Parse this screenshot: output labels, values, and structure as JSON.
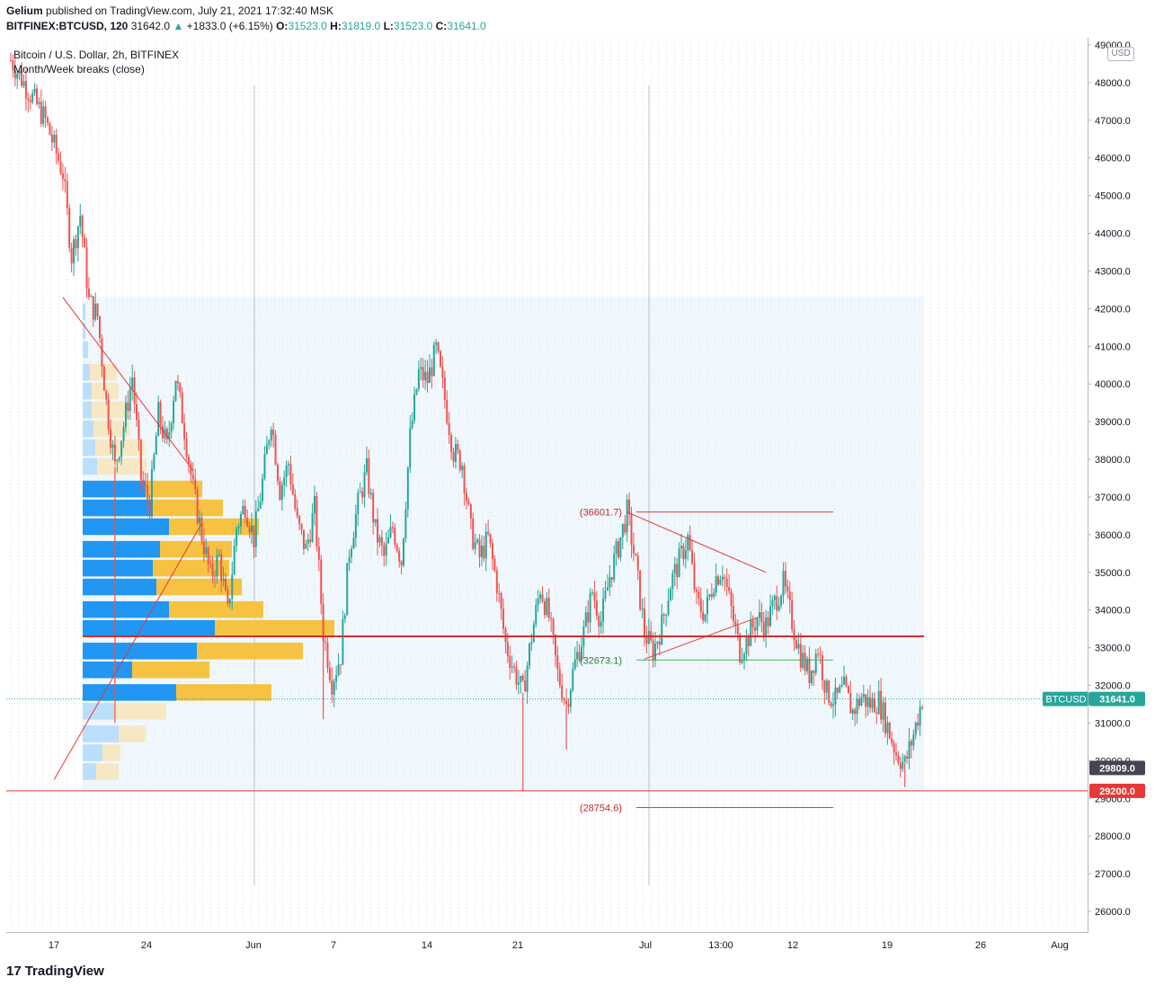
{
  "header": {
    "author": "Gelium",
    "published": " published on TradingView.com, July 21, 2021 17:32:40 MSK",
    "symbol": "BITFINEX:BTCUSD, 120",
    "last": "31642.0",
    "arrow": "▲",
    "change": "+1833.0 (+6.15%)",
    "o_label": "O:",
    "o_value": "31523.0",
    "h_label": "H:",
    "h_value": "31819.0",
    "l_label": "L:",
    "l_value": "31523.0",
    "c_label": "C:",
    "c_value": "31641.0"
  },
  "legend": {
    "line1": "Bitcoin / U.S. Dollar, 2h, BITFINEX",
    "line2": "Month/Week breaks (close)"
  },
  "currency_badge": "USD",
  "footer": {
    "logo_text": "TradingView",
    "logo_mark": "17"
  },
  "colors": {
    "up": "#26a69a",
    "down": "#ef5350",
    "red_line": "#e53935",
    "vp_blue": "#2196f3",
    "vp_yellow": "#f5c242",
    "vp_lightblue": "#bbdefb",
    "vp_lightyellow": "#f7e8c4",
    "range_bg": "#e3f2fd",
    "green_line": "#4caf50"
  },
  "chart_data": {
    "type": "candlestick",
    "symbol": "BTCUSD",
    "interval": "2h",
    "exchange": "BITFINEX",
    "x_ticks": [
      "17",
      "24",
      "Jun",
      "7",
      "14",
      "21",
      "Jul",
      "13:00",
      "12",
      "19",
      "26",
      "Aug"
    ],
    "y_ticks": [
      26000,
      27000,
      28000,
      29000,
      30000,
      31000,
      32000,
      33000,
      34000,
      35000,
      36000,
      37000,
      38000,
      39000,
      40000,
      41000,
      42000,
      43000,
      44000,
      45000,
      46000,
      47000,
      48000,
      49000
    ],
    "y_tick_labels": [
      "26000.0",
      "27000.0",
      "28000.0",
      "29000.0",
      "30000.0",
      "31000.0",
      "32000.0",
      "33000.0",
      "34000.0",
      "35000.0",
      "36000.0",
      "37000.0",
      "38000.0",
      "39000.0",
      "40000.0",
      "41000.0",
      "42000.0",
      "43000.0",
      "44000.0",
      "45000.0",
      "46000.0",
      "47000.0",
      "48000.0",
      "49000.0"
    ],
    "ylim": [
      25500,
      49200
    ],
    "price_path": [
      [
        0,
        48600
      ],
      [
        2,
        47800
      ],
      [
        4,
        47000
      ],
      [
        6,
        45600
      ],
      [
        7,
        43400
      ],
      [
        8,
        44500
      ],
      [
        9,
        42200
      ],
      [
        10,
        41800
      ],
      [
        11,
        39500
      ],
      [
        12,
        37800
      ],
      [
        13,
        38900
      ],
      [
        14,
        40200
      ],
      [
        15,
        37500
      ],
      [
        16,
        36800
      ],
      [
        17,
        39200
      ],
      [
        18,
        38300
      ],
      [
        19,
        40200
      ],
      [
        20,
        38800
      ],
      [
        21,
        37200
      ],
      [
        22,
        36000
      ],
      [
        23,
        34900
      ],
      [
        24,
        35400
      ],
      [
        25,
        33900
      ],
      [
        26,
        36200
      ],
      [
        27,
        36800
      ],
      [
        28,
        35900
      ],
      [
        29,
        37400
      ],
      [
        30,
        39100
      ],
      [
        31,
        37200
      ],
      [
        32,
        37900
      ],
      [
        33,
        36300
      ],
      [
        34,
        35600
      ],
      [
        35,
        36700
      ],
      [
        36,
        33400
      ],
      [
        37,
        32100
      ],
      [
        38,
        32800
      ],
      [
        39,
        35600
      ],
      [
        40,
        36800
      ],
      [
        41,
        37700
      ],
      [
        42,
        36100
      ],
      [
        43,
        35400
      ],
      [
        44,
        36200
      ],
      [
        45,
        35300
      ],
      [
        46,
        38600
      ],
      [
        47,
        40300
      ],
      [
        48,
        40100
      ],
      [
        49,
        40900
      ],
      [
        50,
        39600
      ],
      [
        51,
        38200
      ],
      [
        52,
        37900
      ],
      [
        53,
        36100
      ],
      [
        54,
        35400
      ],
      [
        55,
        35900
      ],
      [
        56,
        34700
      ],
      [
        57,
        33100
      ],
      [
        58,
        32400
      ],
      [
        59,
        31800
      ],
      [
        60,
        33300
      ],
      [
        61,
        34600
      ],
      [
        62,
        33800
      ],
      [
        63,
        32300
      ],
      [
        64,
        31500
      ],
      [
        65,
        32600
      ],
      [
        66,
        33400
      ],
      [
        67,
        34500
      ],
      [
        68,
        33700
      ],
      [
        69,
        34900
      ],
      [
        70,
        35700
      ],
      [
        71,
        36600
      ],
      [
        72,
        35200
      ],
      [
        73,
        33400
      ],
      [
        74,
        32900
      ],
      [
        75,
        33600
      ],
      [
        76,
        34700
      ],
      [
        77,
        35300
      ],
      [
        78,
        35900
      ],
      [
        79,
        34200
      ],
      [
        80,
        33900
      ],
      [
        81,
        34800
      ],
      [
        82,
        35100
      ],
      [
        83,
        34000
      ],
      [
        84,
        32900
      ],
      [
        85,
        33300
      ],
      [
        86,
        33800
      ],
      [
        87,
        33600
      ],
      [
        88,
        34200
      ],
      [
        89,
        34700
      ],
      [
        90,
        33700
      ],
      [
        91,
        32800
      ],
      [
        92,
        32300
      ],
      [
        93,
        33000
      ],
      [
        94,
        31800
      ],
      [
        95,
        31600
      ],
      [
        96,
        31900
      ],
      [
        97,
        31300
      ],
      [
        98,
        31700
      ],
      [
        99,
        31500
      ],
      [
        100,
        31600
      ],
      [
        101,
        30900
      ],
      [
        102,
        30200
      ],
      [
        103,
        29900
      ],
      [
        104,
        30700
      ],
      [
        105,
        31642
      ]
    ],
    "n_bars": 106,
    "spikes": [
      {
        "i": 12,
        "low": 31000
      },
      {
        "i": 36,
        "low": 31100
      },
      {
        "i": 59,
        "low": 29200
      },
      {
        "i": 64,
        "low": 30300
      },
      {
        "i": 103,
        "low": 29300
      }
    ],
    "volume_profile": {
      "range": [
        29200,
        42300
      ],
      "rows": [
        {
          "price": 41900,
          "up": 3,
          "down": 0,
          "va": false
        },
        {
          "price": 41400,
          "up": 3,
          "down": 0,
          "va": false
        },
        {
          "price": 40900,
          "up": 6,
          "down": 0,
          "va": false
        },
        {
          "price": 40300,
          "up": 8,
          "down": 30,
          "va": false
        },
        {
          "price": 39800,
          "up": 10,
          "down": 30,
          "va": false
        },
        {
          "price": 39300,
          "up": 10,
          "down": 40,
          "va": false
        },
        {
          "price": 38800,
          "up": 12,
          "down": 40,
          "va": false
        },
        {
          "price": 38300,
          "up": 14,
          "down": 55,
          "va": false
        },
        {
          "price": 37800,
          "up": 16,
          "down": 55,
          "va": false
        },
        {
          "price": 37200,
          "up": 70,
          "down": 63,
          "va": true
        },
        {
          "price": 36700,
          "up": 78,
          "down": 78,
          "va": true
        },
        {
          "price": 36200,
          "up": 96,
          "down": 100,
          "va": true
        },
        {
          "price": 35600,
          "up": 86,
          "down": 80,
          "va": true
        },
        {
          "price": 35100,
          "up": 78,
          "down": 85,
          "va": true
        },
        {
          "price": 34600,
          "up": 82,
          "down": 95,
          "va": true
        },
        {
          "price": 34000,
          "up": 96,
          "down": 105,
          "va": true
        },
        {
          "price": 33500,
          "up": 147,
          "down": 133,
          "va": true
        },
        {
          "price": 32900,
          "up": 127,
          "down": 118,
          "va": true
        },
        {
          "price": 32400,
          "up": 55,
          "down": 86,
          "va": true
        },
        {
          "price": 31800,
          "up": 104,
          "down": 106,
          "va": true
        },
        {
          "price": 31300,
          "up": 35,
          "down": 58,
          "va": false
        },
        {
          "price": 30700,
          "up": 40,
          "down": 30,
          "va": false
        },
        {
          "price": 30200,
          "up": 22,
          "down": 20,
          "va": false
        },
        {
          "price": 29700,
          "up": 15,
          "down": 25,
          "va": false
        }
      ],
      "poc": 33300
    },
    "levels": [
      {
        "label": "(36601.7)",
        "price": 36601.7
      },
      {
        "label": "(32673.1)",
        "price": 32673.1
      },
      {
        "label": "(28754.6)",
        "price": 28754.6
      }
    ],
    "poc_line": 33300,
    "support_line": 29200,
    "price_labels": [
      {
        "name": "BTCUSD",
        "value": "31641.0",
        "price": 31641,
        "color": "#26a69a"
      },
      {
        "value": "29809.0",
        "price": 29809,
        "color": "#434651"
      },
      {
        "value": "29200.0",
        "price": 29200,
        "color": "#e53935"
      }
    ],
    "trendlines": [
      {
        "from": [
          6,
          42300
        ],
        "to": [
          21,
          37700
        ]
      },
      {
        "from": [
          5,
          29500
        ],
        "to": [
          22,
          36300
        ]
      },
      {
        "from": [
          71,
          36600
        ],
        "to": [
          87,
          35000
        ]
      },
      {
        "from": [
          73,
          32700
        ],
        "to": [
          86,
          33800
        ]
      }
    ]
  }
}
